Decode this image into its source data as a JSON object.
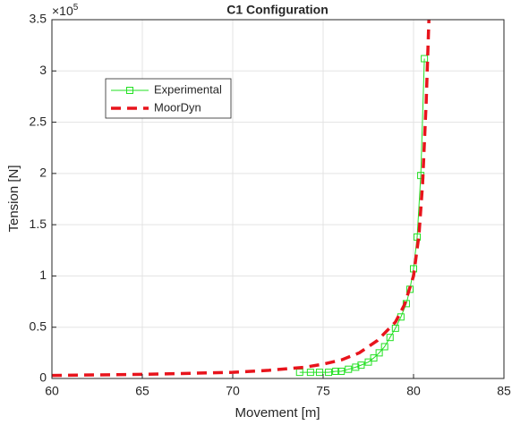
{
  "chart_data": {
    "type": "line",
    "title": "C1 Configuration",
    "x_label": "Movement [m]",
    "y_label": "Tension [N]",
    "y_multiplier": {
      "base": "×10",
      "power": "5"
    },
    "xlim": [
      60,
      85
    ],
    "xticks": [
      60,
      65,
      70,
      75,
      80,
      85
    ],
    "ylim": [
      0,
      3.5
    ],
    "yticks": [
      0,
      0.5,
      1,
      1.5,
      2,
      2.5,
      3,
      3.5
    ],
    "grid": true,
    "legend": "upper left",
    "series": [
      {
        "name": "Experimental",
        "color": "#22e022",
        "style": "solid",
        "marker": "square",
        "x": [
          73.7,
          74.3,
          74.8,
          75.3,
          75.7,
          76.0,
          76.4,
          76.8,
          77.1,
          77.5,
          77.8,
          78.1,
          78.4,
          78.7,
          79.0,
          79.3,
          79.6,
          79.8,
          80.0,
          80.2,
          80.4,
          80.6
        ],
        "values": [
          0.06,
          0.06,
          0.06,
          0.06,
          0.07,
          0.07,
          0.09,
          0.11,
          0.13,
          0.16,
          0.2,
          0.25,
          0.31,
          0.4,
          0.49,
          0.6,
          0.73,
          0.87,
          1.07,
          1.38,
          1.98,
          3.12
        ]
      },
      {
        "name": "MoorDyn",
        "color": "#e8141c",
        "style": "dashed",
        "marker": "none",
        "x": [
          60,
          65,
          70,
          72,
          74,
          75,
          76,
          77,
          78,
          79,
          79.5,
          80,
          80.3,
          80.5,
          80.7,
          80.85
        ],
        "values": [
          0.03,
          0.04,
          0.06,
          0.08,
          0.11,
          0.14,
          0.18,
          0.25,
          0.37,
          0.55,
          0.72,
          1.0,
          1.4,
          1.9,
          2.7,
          3.5
        ]
      }
    ]
  }
}
